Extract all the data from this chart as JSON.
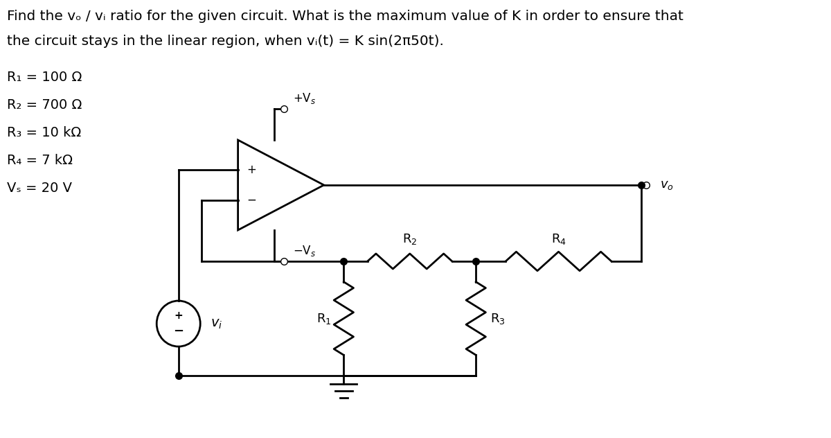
{
  "title_line1": "Find the vₒ / vᵢ ratio for the given circuit. What is the maximum value of K in order to ensure that",
  "title_line2": "the circuit stays in the linear region, when vᵢ(t) = K sin(2π50t).",
  "params": [
    "R₁ = 100 Ω",
    "R₂ = 700 Ω",
    "R₃ = 10 kΩ",
    "R₄ = 7 kΩ",
    "Vₛ = 20 V"
  ],
  "bg_color": "#ffffff",
  "line_color": "#000000",
  "font_size_title": 14.5,
  "font_size_params": 14,
  "font_size_labels": 13
}
